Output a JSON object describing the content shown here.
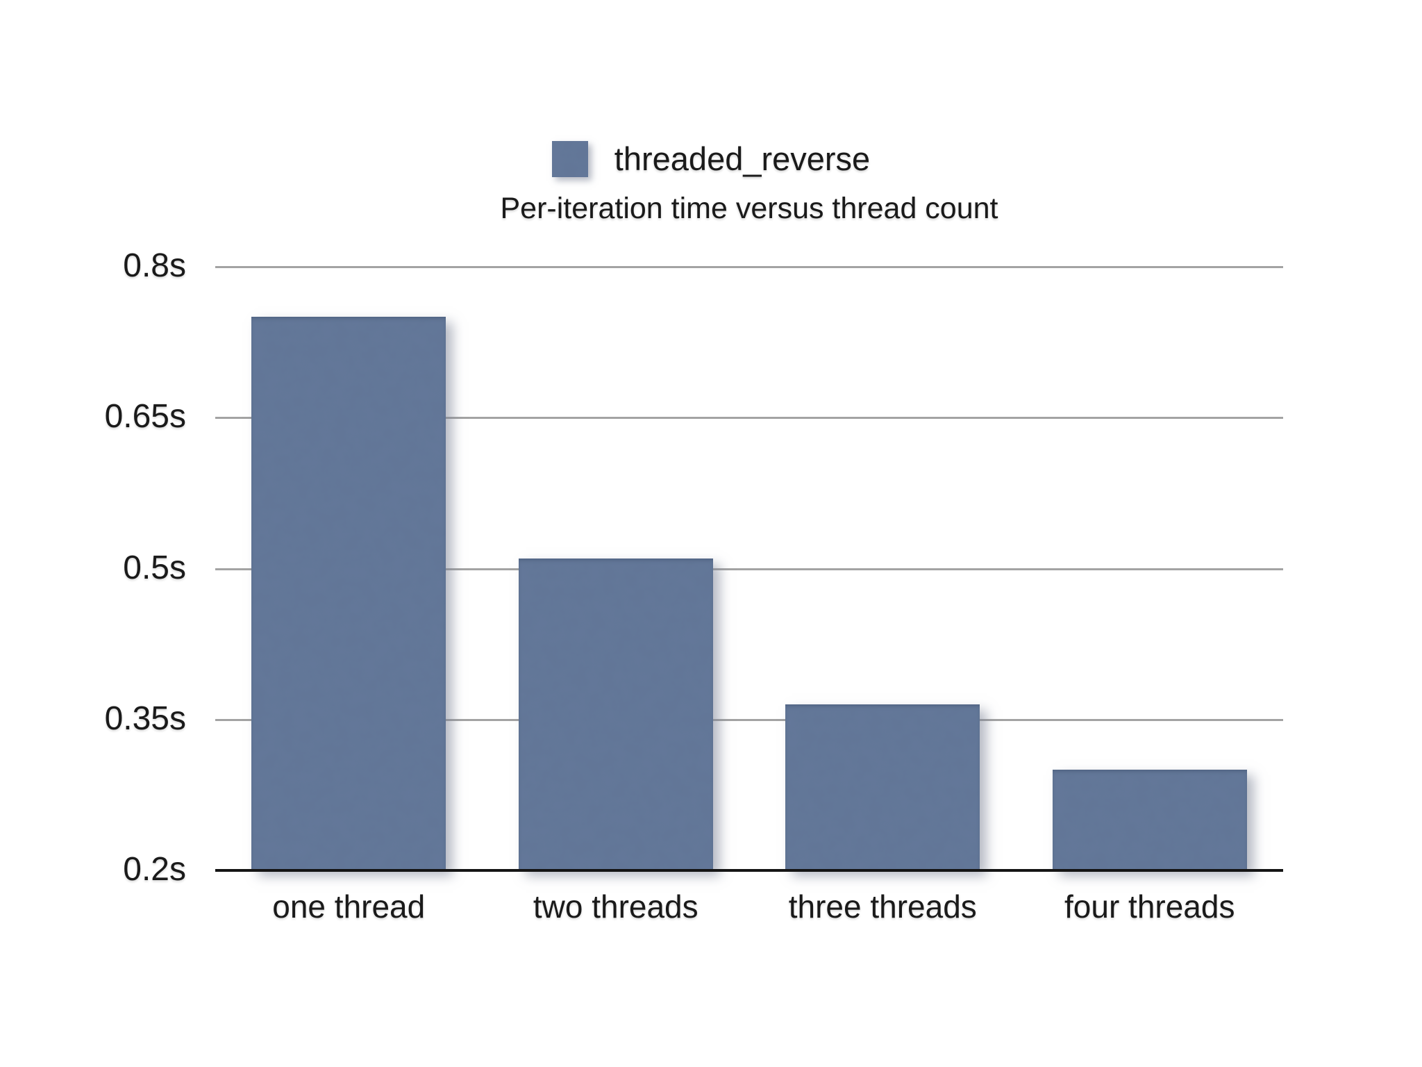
{
  "legend": {
    "label": "threaded_reverse",
    "swatch_color": "#64789A"
  },
  "title": "Per-iteration time versus thread count",
  "chart_data": {
    "type": "bar",
    "title": "Per-iteration time versus thread count",
    "series_name": "threaded_reverse",
    "categories": [
      "one thread",
      "two threads",
      "three threads",
      "four threads"
    ],
    "values": [
      0.75,
      0.51,
      0.365,
      0.3
    ],
    "unit": "seconds",
    "xlabel": "",
    "ylabel": "",
    "ylim": [
      0.2,
      0.8
    ],
    "ytick_values": [
      0.8,
      0.65,
      0.5,
      0.35,
      0.2
    ],
    "ytick_labels": [
      "0.8s",
      "0.65s",
      "0.5s",
      "0.35s",
      "0.2s"
    ],
    "grid": true,
    "legend_position": "top-center",
    "bar_color": "#64789A"
  },
  "colors": {
    "bar": "#64789A",
    "gridline": "#A3A3A3",
    "axis": "#151515",
    "text": "#1A1A1A",
    "background": "#FFFFFF"
  }
}
